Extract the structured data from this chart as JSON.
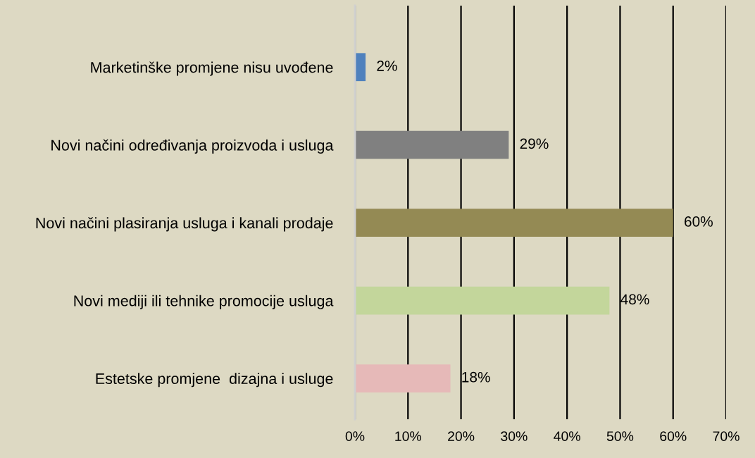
{
  "chart_data": {
    "type": "bar",
    "orientation": "horizontal",
    "categories": [
      "Marketinške promjene nisu uvođene",
      "Novi načini određivanja proizvoda i usluga",
      "Novi načini plasiranja usluga i kanali prodaje",
      "Novi mediji ili tehnike promocije usluga",
      "Estetske promjene  dizajna i usluge"
    ],
    "values": [
      2,
      29,
      60,
      48,
      18
    ],
    "colors": [
      "#4f81bd",
      "#808080",
      "#948a54",
      "#c3d69b",
      "#e6b9b8"
    ],
    "value_labels": [
      "2%",
      "29%",
      "60%",
      "48%",
      "18%"
    ],
    "xlim": [
      0,
      70
    ],
    "xticks": [
      {
        "value": 0,
        "label": "0%"
      },
      {
        "value": 10,
        "label": "10%"
      },
      {
        "value": 20,
        "label": "20%"
      },
      {
        "value": 30,
        "label": "30%"
      },
      {
        "value": 40,
        "label": "40%"
      },
      {
        "value": 50,
        "label": "50%"
      },
      {
        "value": 60,
        "label": "60%"
      },
      {
        "value": 70,
        "label": "70%"
      }
    ],
    "grid": "x"
  }
}
